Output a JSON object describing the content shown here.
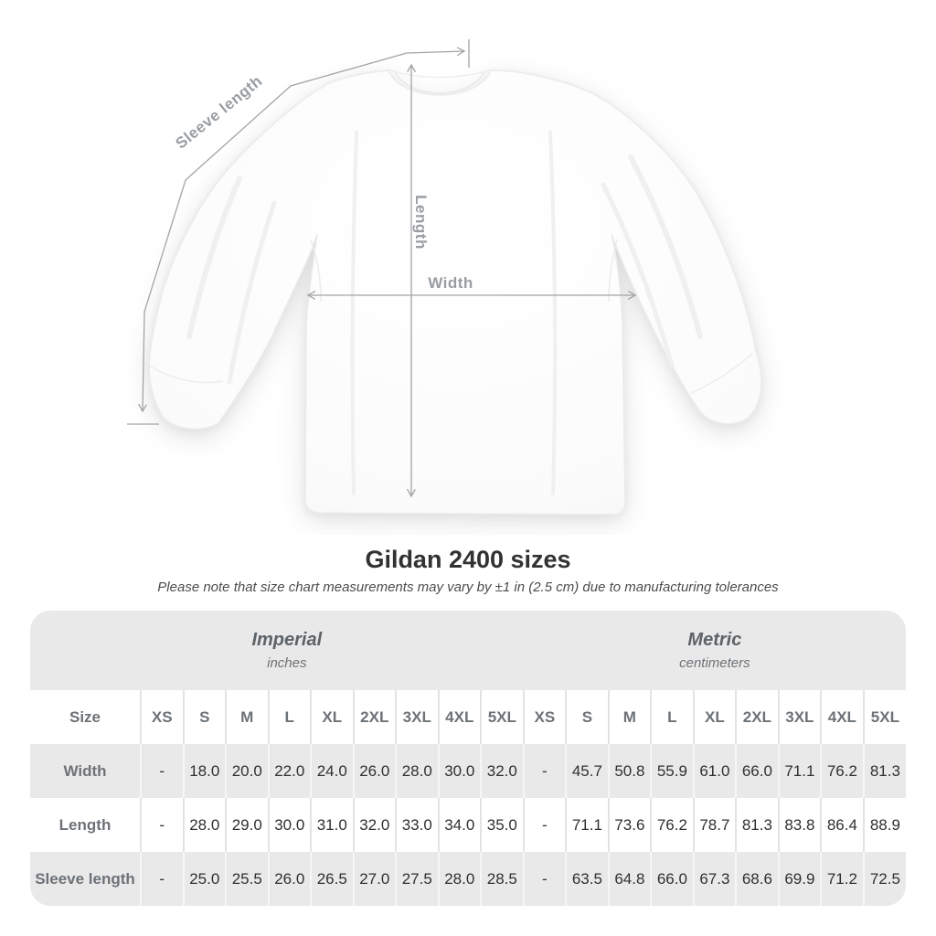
{
  "diagram": {
    "labels": {
      "sleeve": "Sleeve length",
      "length": "Length",
      "width": "Width"
    },
    "line_color": "#a4a4a6",
    "label_color": "#989da2"
  },
  "heading": {
    "title": "Gildan 2400 sizes",
    "subtitle": "Please note that size chart measurements may vary by ±1 in (2.5 cm) due to manufacturing tolerances"
  },
  "size_table": {
    "unit_headers": [
      {
        "name": "Imperial",
        "unit": "inches"
      },
      {
        "name": "Metric",
        "unit": "centimeters"
      }
    ],
    "size_column_header": "Size",
    "sizes": [
      "XS",
      "S",
      "M",
      "L",
      "XL",
      "2XL",
      "3XL",
      "4XL",
      "5XL"
    ],
    "rows": [
      {
        "label": "Width",
        "imperial": [
          "-",
          "18.0",
          "20.0",
          "22.0",
          "24.0",
          "26.0",
          "28.0",
          "30.0",
          "32.0"
        ],
        "metric": [
          "-",
          "45.7",
          "50.8",
          "55.9",
          "61.0",
          "66.0",
          "71.1",
          "76.2",
          "81.3"
        ]
      },
      {
        "label": "Length",
        "imperial": [
          "-",
          "28.0",
          "29.0",
          "30.0",
          "31.0",
          "32.0",
          "33.0",
          "34.0",
          "35.0"
        ],
        "metric": [
          "-",
          "71.1",
          "73.6",
          "76.2",
          "78.7",
          "81.3",
          "83.8",
          "86.4",
          "88.9"
        ]
      },
      {
        "label": "Sleeve length",
        "imperial": [
          "-",
          "25.0",
          "25.5",
          "26.0",
          "26.5",
          "27.0",
          "27.5",
          "28.0",
          "28.5"
        ],
        "metric": [
          "-",
          "63.5",
          "64.8",
          "66.0",
          "67.3",
          "68.6",
          "69.9",
          "71.2",
          "72.5"
        ]
      }
    ]
  },
  "chart_data": {
    "type": "table",
    "title": "Gildan 2400 sizes",
    "columns": [
      "Size",
      "XS",
      "S",
      "M",
      "L",
      "XL",
      "2XL",
      "3XL",
      "4XL",
      "5XL"
    ],
    "units": [
      "inches",
      "centimeters"
    ],
    "rows_inches": [
      [
        "Width",
        "-",
        18.0,
        20.0,
        22.0,
        24.0,
        26.0,
        28.0,
        30.0,
        32.0
      ],
      [
        "Length",
        "-",
        28.0,
        29.0,
        30.0,
        31.0,
        32.0,
        33.0,
        34.0,
        35.0
      ],
      [
        "Sleeve length",
        "-",
        25.0,
        25.5,
        26.0,
        26.5,
        27.0,
        27.5,
        28.0,
        28.5
      ]
    ],
    "rows_centimeters": [
      [
        "Width",
        "-",
        45.7,
        50.8,
        55.9,
        61.0,
        66.0,
        71.1,
        76.2,
        81.3
      ],
      [
        "Length",
        "-",
        71.1,
        73.6,
        76.2,
        78.7,
        81.3,
        83.8,
        86.4,
        88.9
      ],
      [
        "Sleeve length",
        "-",
        63.5,
        64.8,
        66.0,
        67.3,
        68.6,
        69.9,
        71.2,
        72.5
      ]
    ]
  }
}
